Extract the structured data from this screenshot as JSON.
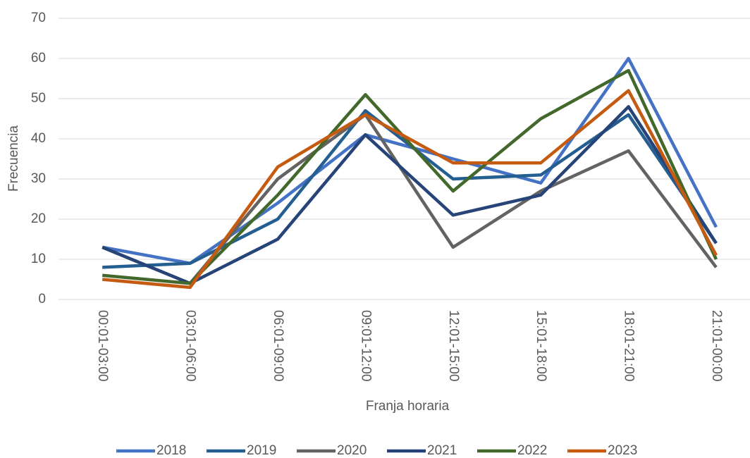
{
  "chart_data": {
    "type": "line",
    "x_label": "Franja horaria",
    "y_label": "Frecuencia",
    "categories": [
      "00:01-03:00",
      "03:01-06:00",
      "06:01-09:00",
      "09:01-12:00",
      "12:01-15:00",
      "15:01-18:00",
      "18:01-21:00",
      "21:01-00:00"
    ],
    "series": [
      {
        "name": "2018",
        "color": "#4472c4",
        "values": [
          13,
          9,
          24,
          41,
          35,
          29,
          60,
          18
        ]
      },
      {
        "name": "2019",
        "color": "#255e91",
        "values": [
          8,
          9,
          20,
          47,
          30,
          31,
          46,
          14
        ]
      },
      {
        "name": "2020",
        "color": "#636363",
        "values": [
          13,
          4,
          30,
          46,
          13,
          27,
          37,
          8
        ]
      },
      {
        "name": "2021",
        "color": "#264478",
        "values": [
          13,
          4,
          15,
          41,
          21,
          26,
          48,
          14
        ]
      },
      {
        "name": "2022",
        "color": "#43682b",
        "values": [
          6,
          4,
          26,
          51,
          27,
          45,
          57,
          10
        ]
      },
      {
        "name": "2023",
        "color": "#c55a11",
        "values": [
          5,
          3,
          33,
          46,
          34,
          34,
          52,
          11
        ]
      }
    ],
    "ylim": [
      0,
      70
    ],
    "yticks": [
      0,
      10,
      20,
      30,
      40,
      50,
      60,
      70
    ],
    "grid": true,
    "legend": "bottom"
  }
}
